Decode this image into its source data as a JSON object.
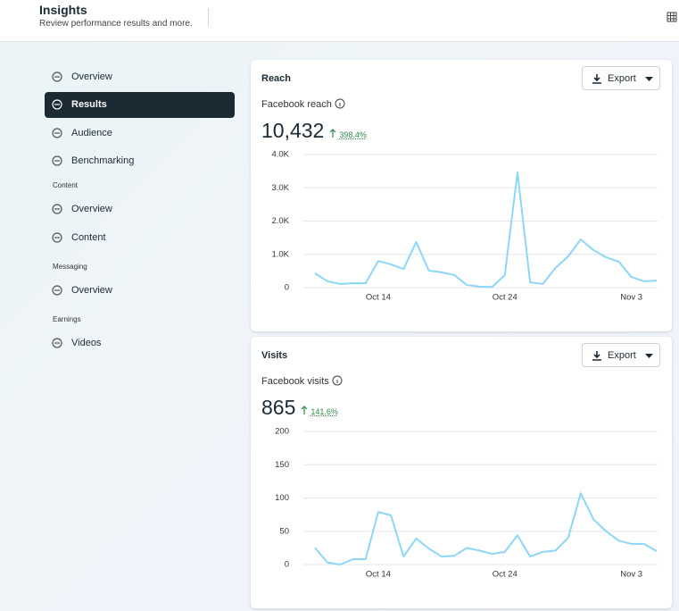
{
  "header": {
    "title": "Insights",
    "subtitle": "Review performance results and more."
  },
  "sidebar": {
    "items": [
      {
        "label": "Overview"
      },
      {
        "label": "Results",
        "active": true
      },
      {
        "label": "Audience"
      },
      {
        "label": "Benchmarking"
      }
    ],
    "sections": [
      {
        "heading": "Content",
        "items": [
          "Overview",
          "Content"
        ]
      },
      {
        "heading": "Messaging",
        "items": [
          "Overview"
        ]
      },
      {
        "heading": "Earnings",
        "items": [
          "Videos"
        ]
      }
    ]
  },
  "chart_data": [
    {
      "type": "line",
      "title": "Reach",
      "button": "Export",
      "metric": "Facebook reach",
      "total": "10,432",
      "change": "398.4%",
      "categories": [
        null,
        null,
        null,
        null,
        null,
        "Oct 14",
        null,
        null,
        null,
        null,
        null,
        null,
        null,
        null,
        null,
        "Oct 24",
        null,
        null,
        null,
        null,
        null,
        null,
        null,
        null,
        null,
        "Nov 3",
        null,
        null
      ],
      "values": [
        430,
        190,
        110,
        130,
        130,
        800,
        700,
        560,
        1370,
        510,
        460,
        380,
        80,
        30,
        20,
        380,
        3460,
        160,
        110,
        590,
        940,
        1450,
        1130,
        910,
        780,
        320,
        190,
        210
      ],
      "color": "#8dd6f7",
      "ylim": [
        0,
        4000
      ],
      "yticks": [
        0,
        {
          "value": 1000,
          "label": "1.0K"
        },
        {
          "value": 2000,
          "label": "2.0K"
        },
        {
          "value": 3000,
          "label": "3.0K"
        },
        {
          "value": 4000,
          "label": "4.0K"
        }
      ],
      "grid": true
    },
    {
      "type": "line",
      "title": "Visits",
      "button": "Export",
      "metric": "Facebook visits",
      "total": "865",
      "change": "141.6%",
      "categories": [
        null,
        null,
        null,
        null,
        null,
        "Oct 14",
        null,
        null,
        null,
        null,
        null,
        null,
        null,
        null,
        null,
        "Oct 24",
        null,
        null,
        null,
        null,
        null,
        null,
        null,
        null,
        null,
        "Nov 3",
        null,
        null
      ],
      "values": [
        25,
        3,
        0,
        8,
        8,
        79,
        74,
        12,
        39,
        24,
        12,
        13,
        25,
        21,
        16,
        19,
        44,
        12,
        19,
        21,
        40,
        107,
        68,
        50,
        36,
        31,
        31,
        20
      ],
      "color": "#8dd6f7",
      "ylim": [
        0,
        200
      ],
      "yticks": [
        0,
        50,
        100,
        150,
        200
      ],
      "grid": true
    }
  ]
}
